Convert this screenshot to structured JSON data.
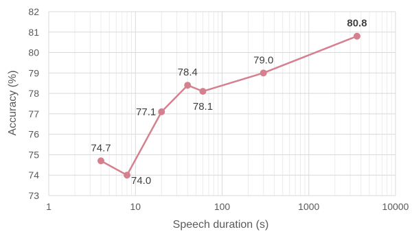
{
  "chart_data": {
    "type": "line",
    "x_scale": "log",
    "xlim": [
      1,
      10000
    ],
    "ylim": [
      73,
      82
    ],
    "x_ticks": [
      1,
      10,
      100,
      1000,
      10000
    ],
    "x_tick_labels": [
      "1",
      "10",
      "100",
      "1000",
      "10000"
    ],
    "y_ticks": [
      73,
      74,
      75,
      76,
      77,
      78,
      79,
      80,
      81,
      82
    ],
    "xlabel": "Speech duration (s)",
    "ylabel": "Accuracy (%)",
    "grid": "major and minor",
    "legend": "none",
    "series": [
      {
        "color": "#d4808e",
        "points": [
          {
            "x": 4,
            "y": 74.7,
            "label": "74.7",
            "label_pos": "above",
            "bold": false
          },
          {
            "x": 8,
            "y": 74.0,
            "label": "74.0",
            "label_pos": "right-below",
            "bold": false
          },
          {
            "x": 20,
            "y": 77.1,
            "label": "77.1",
            "label_pos": "left",
            "bold": false
          },
          {
            "x": 40,
            "y": 78.4,
            "label": "78.4",
            "label_pos": "above",
            "bold": false
          },
          {
            "x": 60,
            "y": 78.1,
            "label": "78.1",
            "label_pos": "below",
            "bold": false
          },
          {
            "x": 300,
            "y": 79.0,
            "label": "79.0",
            "label_pos": "above",
            "bold": false
          },
          {
            "x": 3600,
            "y": 80.8,
            "label": "80.8",
            "label_pos": "above",
            "bold": true
          }
        ]
      }
    ]
  }
}
